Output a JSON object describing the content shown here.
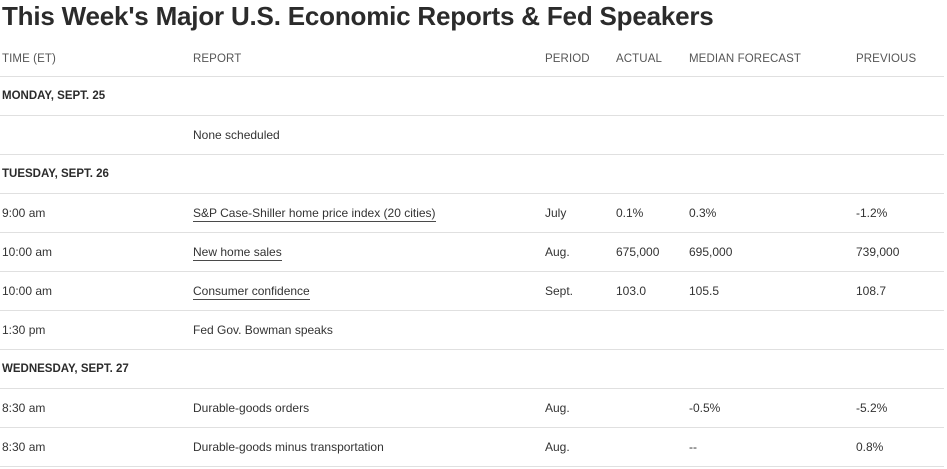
{
  "title": "This Week's Major U.S. Economic Reports & Fed Speakers",
  "columns": {
    "time": "TIME (ET)",
    "report": "REPORT",
    "period": "PERIOD",
    "actual": "ACTUAL",
    "median_forecast": "MEDIAN FORECAST",
    "previous": "PREVIOUS"
  },
  "days": [
    {
      "label": "MONDAY, SEPT. 25",
      "rows": [
        {
          "time": "",
          "report": "None scheduled",
          "link": false,
          "period": "",
          "actual": "",
          "forecast": "",
          "previous": ""
        }
      ]
    },
    {
      "label": "TUESDAY, SEPT. 26",
      "rows": [
        {
          "time": "9:00 am",
          "report": "S&P Case-Shiller home price index (20 cities)",
          "link": true,
          "period": "July",
          "actual": "0.1%",
          "forecast": "0.3%",
          "previous": "-1.2%"
        },
        {
          "time": "10:00 am",
          "report": "New home sales",
          "link": true,
          "period": "Aug.",
          "actual": "675,000",
          "forecast": "695,000",
          "previous": "739,000"
        },
        {
          "time": "10:00 am",
          "report": "Consumer confidence",
          "link": true,
          "period": "Sept.",
          "actual": "103.0",
          "forecast": "105.5",
          "previous": "108.7"
        },
        {
          "time": "1:30 pm",
          "report": "Fed Gov. Bowman speaks",
          "link": false,
          "period": "",
          "actual": "",
          "forecast": "",
          "previous": ""
        }
      ]
    },
    {
      "label": "WEDNESDAY, SEPT. 27",
      "rows": [
        {
          "time": "8:30 am",
          "report": "Durable-goods orders",
          "link": false,
          "period": "Aug.",
          "actual": "",
          "forecast": "-0.5%",
          "previous": "-5.2%"
        },
        {
          "time": "8:30 am",
          "report": "Durable-goods minus transportation",
          "link": false,
          "period": "Aug.",
          "actual": "",
          "forecast": "--",
          "previous": "0.8%"
        }
      ]
    }
  ]
}
